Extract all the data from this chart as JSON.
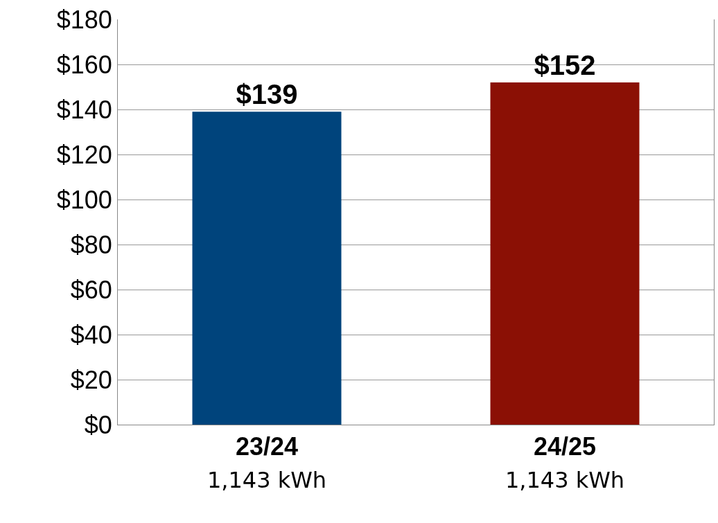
{
  "chart_data": {
    "type": "bar",
    "categories": [
      "23/24\n1,143 kWh",
      "24/25\n1,143 kWh"
    ],
    "values": [
      139,
      152
    ],
    "colors": [
      "#00447c",
      "#8b1005"
    ],
    "value_labels": [
      "$139",
      "$152"
    ],
    "ylim": [
      0,
      180
    ],
    "yticks": [
      {
        "value": 0,
        "label": "$0"
      },
      {
        "value": 20,
        "label": "$20"
      },
      {
        "value": 40,
        "label": "$40"
      },
      {
        "value": 60,
        "label": "$60"
      },
      {
        "value": 80,
        "label": "$80"
      },
      {
        "value": 100,
        "label": "$100"
      },
      {
        "value": 120,
        "label": "$120"
      },
      {
        "value": 140,
        "label": "$140"
      },
      {
        "value": 160,
        "label": "$160"
      },
      {
        "value": 180,
        "label": "$180"
      }
    ],
    "grid": "y"
  }
}
